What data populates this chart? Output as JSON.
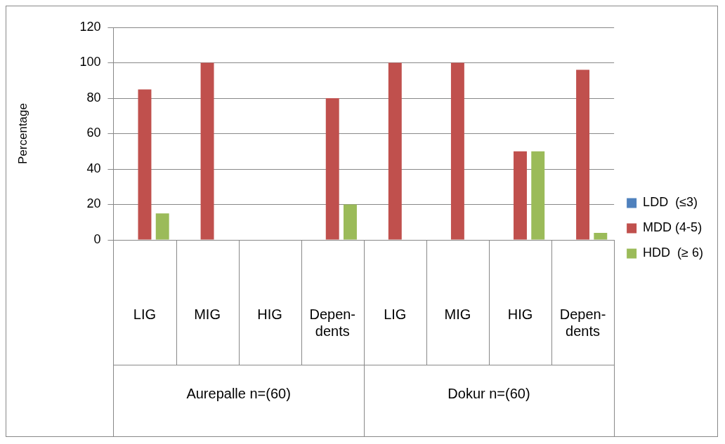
{
  "chart_data": {
    "type": "bar",
    "ylabel": "Percentage",
    "categories": [
      "LIG",
      "MIG",
      "HIG",
      "Depen- dents",
      "LIG",
      "MIG",
      "HIG",
      "Depen- dents"
    ],
    "series": [
      {
        "name": "LDD  (≤3)",
        "color": "#4f81bd",
        "values": [
          0,
          0,
          0,
          0,
          0,
          0,
          0,
          0
        ]
      },
      {
        "name": "MDD (4-5)",
        "color": "#c0504d",
        "values": [
          85,
          100,
          0,
          80,
          100,
          100,
          50,
          96
        ]
      },
      {
        "name": "HDD  (≥ 6)",
        "color": "#9bbb59",
        "values": [
          15,
          0,
          0,
          20,
          0,
          0,
          50,
          4
        ]
      }
    ],
    "annotations": [
      "Aurepalle n=(60)",
      "Dokur n=(60)"
    ],
    "ylim": [
      0,
      120
    ],
    "yticks": [
      0,
      20,
      40,
      60,
      80,
      100,
      120
    ],
    "grid": "y",
    "legend": "right"
  }
}
